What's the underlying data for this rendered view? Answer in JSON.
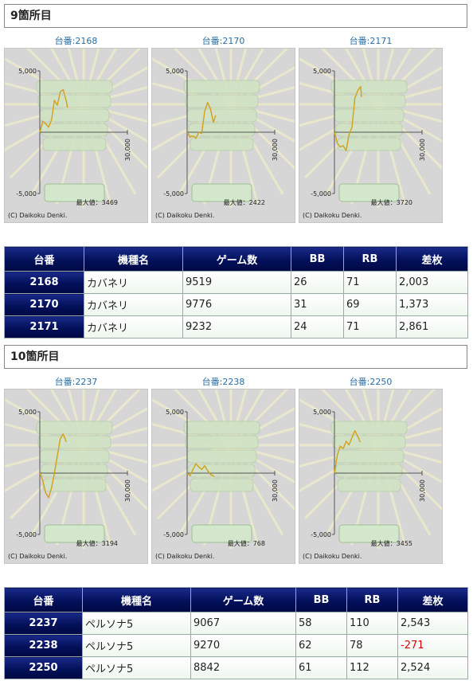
{
  "sections": [
    {
      "title": "9箇所目",
      "charts": [
        {
          "label": "台番:2168",
          "max_label": "最大値：3469"
        },
        {
          "label": "台番:2170",
          "max_label": "最大値：2422"
        },
        {
          "label": "台番:2171",
          "max_label": "最大値：3720"
        }
      ],
      "rows": [
        {
          "no": "2168",
          "model": "カバネリ",
          "games": "9519",
          "bb": "26",
          "rb": "71",
          "diff": "2,003",
          "neg": false
        },
        {
          "no": "2170",
          "model": "カバネリ",
          "games": "9776",
          "bb": "31",
          "rb": "69",
          "diff": "1,373",
          "neg": false
        },
        {
          "no": "2171",
          "model": "カバネリ",
          "games": "9232",
          "bb": "24",
          "rb": "71",
          "diff": "2,861",
          "neg": false
        }
      ]
    },
    {
      "title": "10箇所目",
      "charts": [
        {
          "label": "台番:2237",
          "max_label": "最大値：3194"
        },
        {
          "label": "台番:2238",
          "max_label": "最大値：768"
        },
        {
          "label": "台番:2250",
          "max_label": "最大値：3455"
        }
      ],
      "rows": [
        {
          "no": "2237",
          "model": "ペルソナ5",
          "games": "9067",
          "bb": "58",
          "rb": "110",
          "diff": "2,543",
          "neg": false
        },
        {
          "no": "2238",
          "model": "ペルソナ5",
          "games": "9270",
          "bb": "62",
          "rb": "78",
          "diff": "-271",
          "neg": true
        },
        {
          "no": "2250",
          "model": "ペルソナ5",
          "games": "8842",
          "bb": "61",
          "rb": "112",
          "diff": "2,524",
          "neg": false
        }
      ]
    }
  ],
  "table_headers": {
    "no": "台番",
    "model": "機種名",
    "games": "ゲーム数",
    "bb": "BB",
    "rb": "RB",
    "diff": "差枚"
  },
  "axis_labels": {
    "ymax": "5,000",
    "ymin": "-5,000",
    "xmax": "30,000"
  },
  "copyright": "(C) Daikoku Denki.",
  "colors": {
    "line": "#d4a017",
    "header_dark": "#03105a",
    "negative": "#e00000"
  },
  "chart_data": [
    {
      "type": "line",
      "title": "台番:2168",
      "xlim": [
        0,
        30000
      ],
      "ylim": [
        -5000,
        5000
      ],
      "x": [
        0,
        1000,
        2000,
        3000,
        4000,
        5000,
        6000,
        7000,
        8000,
        9000,
        9519
      ],
      "y": [
        0,
        900,
        700,
        400,
        1000,
        2600,
        2200,
        3300,
        3469,
        2600,
        2003
      ]
    },
    {
      "type": "line",
      "title": "台番:2170",
      "xlim": [
        0,
        30000
      ],
      "ylim": [
        -5000,
        5000
      ],
      "x": [
        0,
        1000,
        2000,
        3000,
        4000,
        5000,
        6000,
        7000,
        8000,
        9000,
        9776
      ],
      "y": [
        0,
        -400,
        -300,
        -500,
        0,
        -100,
        1700,
        2422,
        1900,
        800,
        1373
      ]
    },
    {
      "type": "line",
      "title": "台番:2171",
      "xlim": [
        0,
        30000
      ],
      "ylim": [
        -5000,
        5000
      ],
      "x": [
        0,
        1000,
        2000,
        3000,
        4000,
        5000,
        6000,
        7000,
        8000,
        9000,
        9232
      ],
      "y": [
        0,
        -900,
        -1200,
        -1100,
        -1500,
        -200,
        400,
        2800,
        3400,
        3720,
        2861
      ]
    },
    {
      "type": "line",
      "title": "台番:2237",
      "xlim": [
        0,
        30000
      ],
      "ylim": [
        -5000,
        5000
      ],
      "x": [
        0,
        1000,
        2000,
        3000,
        4000,
        5000,
        6000,
        7000,
        8000,
        9067
      ],
      "y": [
        0,
        -600,
        -1600,
        -2000,
        -1200,
        0,
        1400,
        2800,
        3194,
        2543
      ]
    },
    {
      "type": "line",
      "title": "台番:2238",
      "xlim": [
        0,
        30000
      ],
      "ylim": [
        -5000,
        5000
      ],
      "x": [
        0,
        1000,
        2000,
        3000,
        4000,
        5000,
        6000,
        7000,
        8000,
        9270
      ],
      "y": [
        0,
        -200,
        300,
        768,
        500,
        300,
        600,
        200,
        -100,
        -271
      ]
    },
    {
      "type": "line",
      "title": "台番:2250",
      "xlim": [
        0,
        30000
      ],
      "ylim": [
        -5000,
        5000
      ],
      "x": [
        0,
        1000,
        2000,
        3000,
        4000,
        5000,
        6000,
        7000,
        8000,
        8842
      ],
      "y": [
        0,
        1500,
        2200,
        2000,
        2600,
        2300,
        2900,
        3455,
        3000,
        2524
      ]
    }
  ]
}
